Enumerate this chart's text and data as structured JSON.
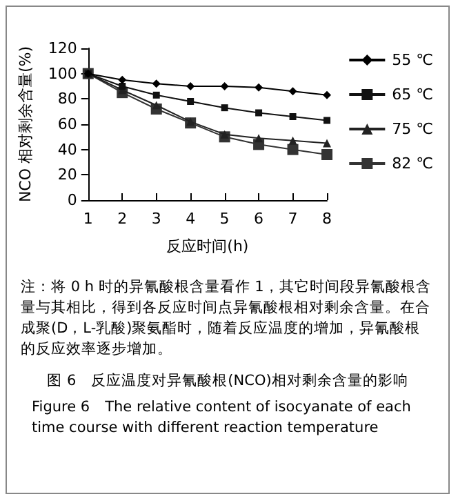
{
  "chart_data": {
    "type": "line",
    "title": "图 6　反应温度对异氰酸根(NCO)相对剩余含量的影响",
    "subtitle": "Figure 6　The relative content of isocyanate of each time course with different reaction temperature",
    "xlabel": "反应时间(h)",
    "ylabel": "NCO 相对剩余含量(%)",
    "annotations": [
      "注：将 0 h 时的异氰酸根含量看作 1，其它时间段异氰酸根含量与其相比，得到各反应时间点异氰酸根相对剩余含量。在合成聚(D，L-乳酸)聚氨酯时，随着反应温度的增加，异氰酸根的反应效率逐步增加。"
    ],
    "categories": [
      "1",
      "2",
      "3",
      "4",
      "5",
      "6",
      "7",
      "8"
    ],
    "series": [
      {
        "name": "55 ℃",
        "color": "#000000",
        "marker": "diamond",
        "values": [
          100,
          95,
          92,
          90,
          90,
          89,
          86,
          83
        ]
      },
      {
        "name": "65 ℃",
        "color": "#111111",
        "marker": "square",
        "values": [
          100,
          90,
          83,
          78,
          73,
          69,
          66,
          63
        ]
      },
      {
        "name": "75 ℃",
        "color": "#222222",
        "marker": "triangle",
        "values": [
          100,
          87,
          75,
          62,
          52,
          49,
          47,
          45
        ]
      },
      {
        "name": "82 ℃",
        "color": "#333333",
        "marker": "square",
        "values": [
          100,
          85,
          72,
          61,
          50,
          44,
          40,
          36
        ]
      }
    ],
    "ylim": [
      0,
      120
    ],
    "yticks": [
      0,
      20,
      40,
      60,
      80,
      100,
      120
    ],
    "grid": false,
    "legend": "right",
    "line_style": "solid"
  }
}
